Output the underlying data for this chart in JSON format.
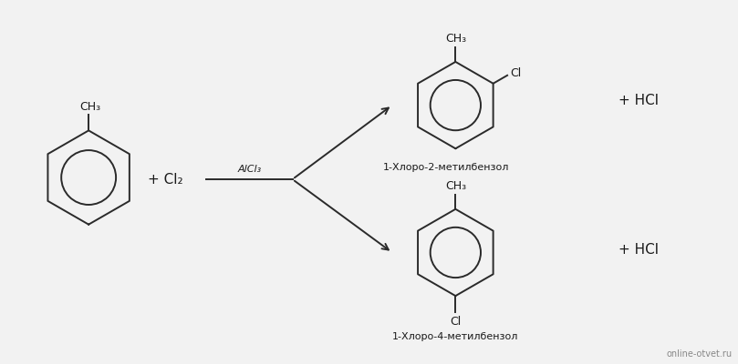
{
  "background_color": "#f2f2f2",
  "text_color": "#1a1a1a",
  "line_color": "#2a2a2a",
  "watermark": "online-otvet.ru",
  "reactant_ch3": "CH₃",
  "plus_cl2": "+ Cl₂",
  "catalyst": "AlCl₃",
  "product1_ch3": "CH₃",
  "product1_cl": "Cl",
  "product1_name": "1-Хлоро-2-метилбензол",
  "product2_ch3": "CH₃",
  "product2_cl": "Cl",
  "product2_name": "1-Хлоро-4-метилбензол",
  "hcl": "+ HCl",
  "figsize": [
    8.09,
    4.0
  ],
  "dpi": 100
}
